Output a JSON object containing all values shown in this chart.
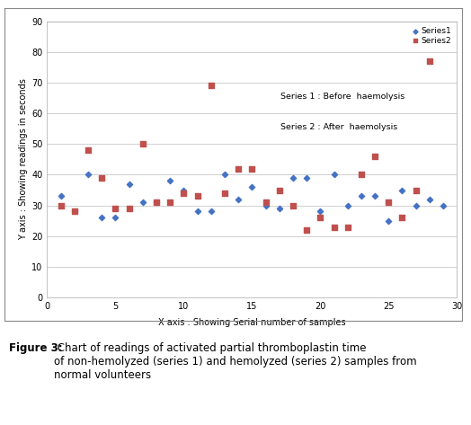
{
  "series1_x": [
    1,
    2,
    3,
    4,
    5,
    6,
    7,
    8,
    9,
    10,
    11,
    12,
    13,
    14,
    15,
    16,
    17,
    18,
    19,
    20,
    21,
    22,
    23,
    24,
    25,
    26,
    27,
    28,
    29
  ],
  "series1_y": [
    33,
    28,
    40,
    26,
    26,
    37,
    31,
    31,
    38,
    35,
    28,
    28,
    40,
    32,
    36,
    30,
    29,
    39,
    39,
    28,
    40,
    30,
    33,
    33,
    25,
    35,
    30,
    32,
    30
  ],
  "series2_x": [
    1,
    2,
    3,
    4,
    5,
    6,
    7,
    8,
    9,
    10,
    11,
    12,
    13,
    14,
    15,
    16,
    17,
    18,
    19,
    20,
    21,
    22,
    23,
    24,
    25,
    26,
    27,
    28
  ],
  "series2_y": [
    30,
    28,
    48,
    39,
    29,
    29,
    50,
    31,
    31,
    34,
    33,
    69,
    34,
    42,
    42,
    31,
    35,
    30,
    22,
    26,
    23,
    23,
    40,
    46,
    31,
    26,
    35,
    77
  ],
  "series1_label": "Series1",
  "series2_label": "Series2",
  "series1_annotation": "Series 1 : Before  haemolysis",
  "series2_annotation": "Series 2 : After  haemolysis",
  "xlabel": "X axis : Showing Serial number of samples",
  "ylabel": "Y axis : Showing readings in seconds",
  "xlim": [
    0,
    30
  ],
  "ylim": [
    0,
    90
  ],
  "xticks": [
    0,
    5,
    10,
    15,
    20,
    25,
    30
  ],
  "yticks": [
    0,
    10,
    20,
    30,
    40,
    50,
    60,
    70,
    80,
    90
  ],
  "series1_color": "#4472C4",
  "series2_color": "#C0504D",
  "bg_color": "#FFFFFF",
  "grid_color": "#C8C8C8",
  "caption_bold": "Figure 3:",
  "caption_normal": " Chart of readings of activated partial thromboplastin time\nof non-hemolyzed (series 1) and hemolyzed (series 2) samples from\nnormal volunteers",
  "border_color": "#000000",
  "tick_color": "#000000"
}
